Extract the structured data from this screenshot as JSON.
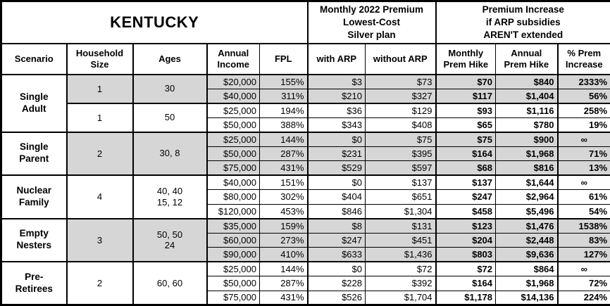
{
  "styles": {
    "shade_color": "#D6D6D6",
    "border_color": "#000000",
    "background": "#FFFFFF"
  },
  "chart_data": {
    "type": "table",
    "title": "KENTUCKY",
    "group_headers": {
      "premium": "Monthly 2022 Premium\nLowest-Cost\nSilver plan",
      "increase": "Premium Increase\nif ARP subsidies\nAREN'T extended"
    },
    "col_headers": {
      "scenario": "Scenario",
      "household_size": "Household\nSize",
      "ages": "Ages",
      "annual_income": "Annual\nIncome",
      "fpl": "FPL",
      "with_arp": "with ARP",
      "without_arp": "without ARP",
      "monthly_hike": "Monthly\nPrem Hike",
      "annual_hike": "Annual\nPrem Hike",
      "pct_increase": "% Prem\nIncrease"
    },
    "blocks": [
      {
        "scenario": "Single\nAdult",
        "groups": [
          {
            "household_size": "1",
            "ages": "30",
            "shaded": true,
            "rows": [
              {
                "income": "$20,000",
                "fpl": "155%",
                "with_arp": "$3",
                "without_arp": "$73",
                "monthly_hike": "$70",
                "annual_hike": "$840",
                "pct_increase": "2333%"
              },
              {
                "income": "$40,000",
                "fpl": "311%",
                "with_arp": "$210",
                "without_arp": "$327",
                "monthly_hike": "$117",
                "annual_hike": "$1,404",
                "pct_increase": "56%"
              }
            ]
          },
          {
            "household_size": "1",
            "ages": "50",
            "shaded": false,
            "rows": [
              {
                "income": "$25,000",
                "fpl": "194%",
                "with_arp": "$36",
                "without_arp": "$129",
                "monthly_hike": "$93",
                "annual_hike": "$1,116",
                "pct_increase": "258%"
              },
              {
                "income": "$50,000",
                "fpl": "388%",
                "with_arp": "$343",
                "without_arp": "$408",
                "monthly_hike": "$65",
                "annual_hike": "$780",
                "pct_increase": "19%"
              }
            ]
          }
        ]
      },
      {
        "scenario": "Single\nParent",
        "groups": [
          {
            "household_size": "2",
            "ages": "30, 8",
            "shaded": true,
            "rows": [
              {
                "income": "$25,000",
                "fpl": "144%",
                "with_arp": "$0",
                "without_arp": "$75",
                "monthly_hike": "$75",
                "annual_hike": "$900",
                "pct_increase": "∞"
              },
              {
                "income": "$50,000",
                "fpl": "287%",
                "with_arp": "$231",
                "without_arp": "$395",
                "monthly_hike": "$164",
                "annual_hike": "$1,968",
                "pct_increase": "71%"
              },
              {
                "income": "$75,000",
                "fpl": "431%",
                "with_arp": "$529",
                "without_arp": "$597",
                "monthly_hike": "$68",
                "annual_hike": "$816",
                "pct_increase": "13%"
              }
            ]
          }
        ]
      },
      {
        "scenario": "Nuclear\nFamily",
        "groups": [
          {
            "household_size": "4",
            "ages": "40, 40\n15, 12",
            "shaded": false,
            "rows": [
              {
                "income": "$40,000",
                "fpl": "151%",
                "with_arp": "$0",
                "without_arp": "$137",
                "monthly_hike": "$137",
                "annual_hike": "$1,644",
                "pct_increase": "∞"
              },
              {
                "income": "$80,000",
                "fpl": "302%",
                "with_arp": "$404",
                "without_arp": "$651",
                "monthly_hike": "$247",
                "annual_hike": "$2,964",
                "pct_increase": "61%"
              },
              {
                "income": "$120,000",
                "fpl": "453%",
                "with_arp": "$846",
                "without_arp": "$1,304",
                "monthly_hike": "$458",
                "annual_hike": "$5,496",
                "pct_increase": "54%"
              }
            ]
          }
        ]
      },
      {
        "scenario": "Empty\nNesters",
        "groups": [
          {
            "household_size": "3",
            "ages": "50, 50\n24",
            "shaded": true,
            "rows": [
              {
                "income": "$35,000",
                "fpl": "159%",
                "with_arp": "$8",
                "without_arp": "$131",
                "monthly_hike": "$123",
                "annual_hike": "$1,476",
                "pct_increase": "1538%"
              },
              {
                "income": "$60,000",
                "fpl": "273%",
                "with_arp": "$247",
                "without_arp": "$451",
                "monthly_hike": "$204",
                "annual_hike": "$2,448",
                "pct_increase": "83%"
              },
              {
                "income": "$90,000",
                "fpl": "410%",
                "with_arp": "$633",
                "without_arp": "$1,436",
                "monthly_hike": "$803",
                "annual_hike": "$9,636",
                "pct_increase": "127%"
              }
            ]
          }
        ]
      },
      {
        "scenario": "Pre-\nRetirees",
        "groups": [
          {
            "household_size": "2",
            "ages": "60, 60",
            "shaded": false,
            "rows": [
              {
                "income": "$25,000",
                "fpl": "144%",
                "with_arp": "$0",
                "without_arp": "$72",
                "monthly_hike": "$72",
                "annual_hike": "$864",
                "pct_increase": "∞"
              },
              {
                "income": "$50,000",
                "fpl": "287%",
                "with_arp": "$228",
                "without_arp": "$392",
                "monthly_hike": "$164",
                "annual_hike": "$1,968",
                "pct_increase": "72%"
              },
              {
                "income": "$75,000",
                "fpl": "431%",
                "with_arp": "$526",
                "without_arp": "$1,704",
                "monthly_hike": "$1,178",
                "annual_hike": "$14,136",
                "pct_increase": "224%"
              }
            ]
          }
        ]
      }
    ]
  }
}
